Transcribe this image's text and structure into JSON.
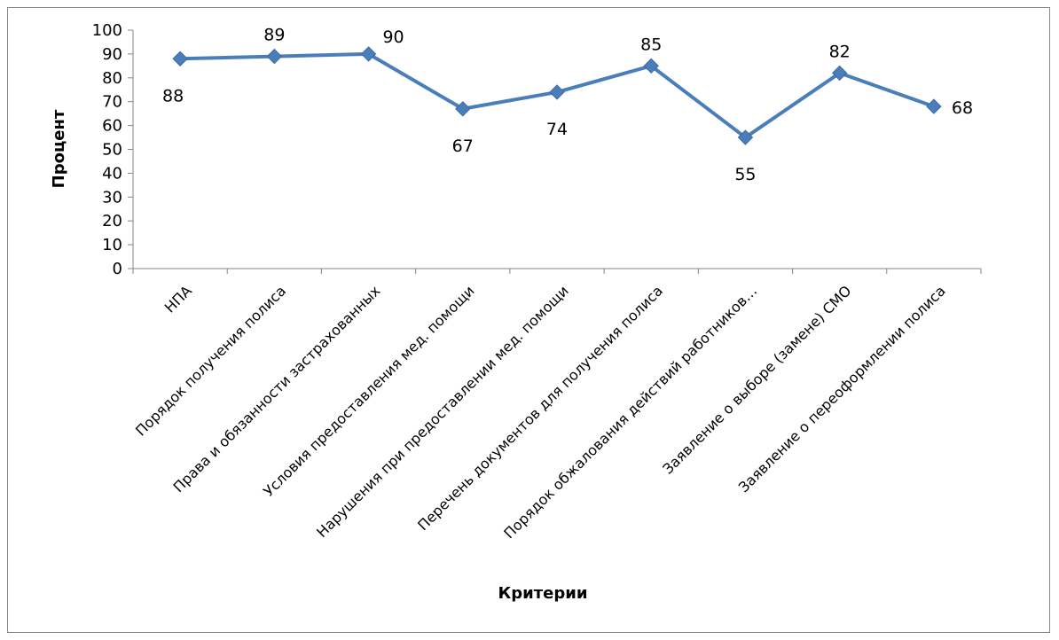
{
  "chart_data": {
    "type": "line",
    "title": "",
    "xlabel": "Критерии",
    "ylabel": "Процент",
    "ylim": [
      0,
      100
    ],
    "ytick_step": 10,
    "grid": false,
    "legend": "none",
    "categories": [
      "НПА",
      "Порядок получения полиса",
      "Права и обязанности застрахованных",
      "Условия предоставления мед. помощи",
      "Нарушения при предоставлении мед. помощи",
      "Перечень документов для получения полиса",
      "Порядок обжалования действий работников…",
      "Заявление о выборе (замене) СМО",
      "Заявление о переоформлении полиса"
    ],
    "series": [
      {
        "values": [
          88,
          89,
          90,
          67,
          74,
          85,
          55,
          82,
          68
        ],
        "color": "#4a7ebb"
      }
    ],
    "data_labels": [
      "88",
      "89",
      "90",
      "67",
      "74",
      "85",
      "55",
      "82",
      "68"
    ],
    "data_label_positions": [
      "below",
      "above",
      "above-right",
      "below",
      "below",
      "above",
      "below",
      "above",
      "right"
    ]
  }
}
